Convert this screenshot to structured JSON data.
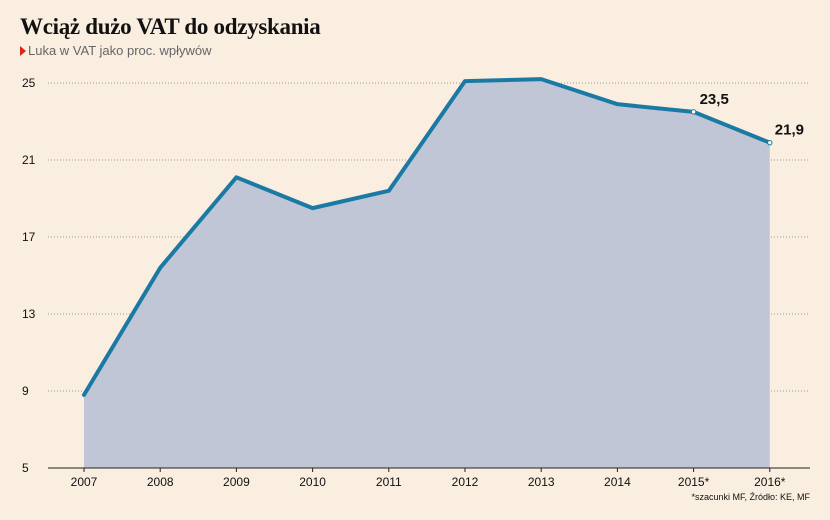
{
  "title": "Wciąż dużo VAT do odzyskania",
  "subtitle": "Luka w VAT jako proc. wpływów",
  "note": "*szacunki MF, Źródło: KE, MF",
  "colors": {
    "line": "#1a7aa3",
    "area": "#c1c6d6",
    "accent": "#d9261c",
    "background": "#faeee0"
  },
  "chart_data": {
    "type": "area",
    "categories": [
      "2007",
      "2008",
      "2009",
      "2010",
      "2011",
      "2012",
      "2013",
      "2014",
      "2015*",
      "2016*"
    ],
    "values": [
      8.8,
      15.4,
      20.1,
      18.5,
      19.4,
      25.1,
      25.2,
      23.9,
      23.5,
      21.9
    ],
    "data_labels": {
      "8": "23,5",
      "9": "21,9"
    },
    "ylim": [
      5,
      25
    ],
    "yticks": [
      5,
      9,
      13,
      17,
      21,
      25
    ],
    "grid": true
  }
}
